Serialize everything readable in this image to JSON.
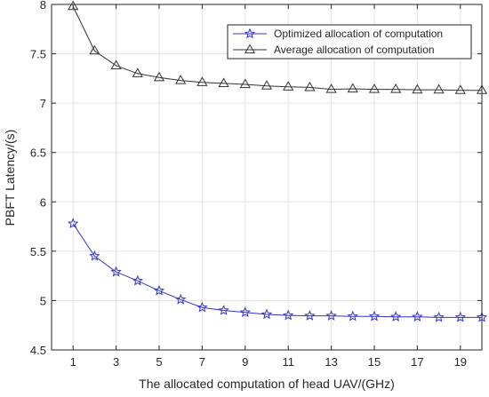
{
  "chart_data": {
    "type": "line",
    "title": "",
    "xlabel": "The allocated computation of head UAV/(GHz)",
    "ylabel": "PBFT  Latency/(s)",
    "xlim": [
      0,
      20
    ],
    "ylim": [
      4.5,
      8
    ],
    "xticks": [
      1,
      3,
      5,
      7,
      9,
      11,
      13,
      15,
      17,
      19
    ],
    "yticks": [
      4.5,
      5,
      5.5,
      6,
      6.5,
      7,
      7.5,
      8
    ],
    "grid": true,
    "legend_position": "top-right",
    "x": [
      1,
      2,
      3,
      4,
      5,
      6,
      7,
      8,
      9,
      10,
      11,
      12,
      13,
      14,
      15,
      16,
      17,
      18,
      19,
      20
    ],
    "series": [
      {
        "name": "Optimized allocation of computation",
        "color": "#3333cc",
        "marker": "star",
        "values": [
          5.78,
          5.45,
          5.29,
          5.2,
          5.1,
          5.01,
          4.93,
          4.9,
          4.88,
          4.86,
          4.85,
          4.845,
          4.845,
          4.84,
          4.84,
          4.835,
          4.835,
          4.83,
          4.83,
          4.83
        ]
      },
      {
        "name": "Average allocation of computation",
        "color": "#333333",
        "marker": "triangle",
        "values": [
          7.98,
          7.53,
          7.38,
          7.3,
          7.26,
          7.23,
          7.21,
          7.2,
          7.19,
          7.175,
          7.165,
          7.16,
          7.14,
          7.145,
          7.14,
          7.14,
          7.135,
          7.135,
          7.13,
          7.13
        ]
      }
    ]
  }
}
